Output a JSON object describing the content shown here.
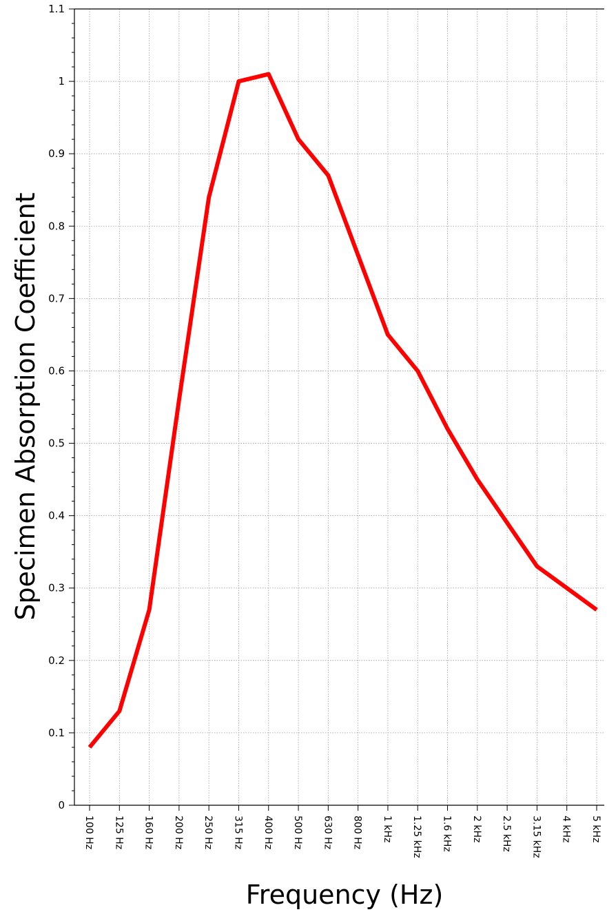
{
  "chart_data": {
    "type": "line",
    "title": "",
    "xlabel": "Frequency (Hz)",
    "ylabel": "Specimen Absorption Coefficient",
    "categories": [
      "100 Hz",
      "125 Hz",
      "160 Hz",
      "200 Hz",
      "250 Hz",
      "315 Hz",
      "400 Hz",
      "500 Hz",
      "630 Hz",
      "800 Hz",
      "1 kHz",
      "1.25 kHz",
      "1.6 kHz",
      "2 kHz",
      "2.5 kHz",
      "3.15 kHz",
      "4 kHz",
      "5 kHz"
    ],
    "series": [
      {
        "color": "#ff0000",
        "values": [
          0.08,
          0.13,
          0.27,
          0.56,
          0.84,
          1.0,
          1.01,
          0.92,
          0.87,
          0.76,
          0.65,
          0.6,
          0.52,
          0.45,
          0.39,
          0.33,
          0.3,
          0.27
        ]
      }
    ],
    "ylim": [
      0,
      1.1
    ],
    "yticks": [
      "0",
      "0.1",
      "0.2",
      "0.3",
      "0.4",
      "0.5",
      "0.6",
      "0.7",
      "0.8",
      "0.9",
      "1",
      "1.1"
    ],
    "grid": true,
    "legend": "none"
  }
}
